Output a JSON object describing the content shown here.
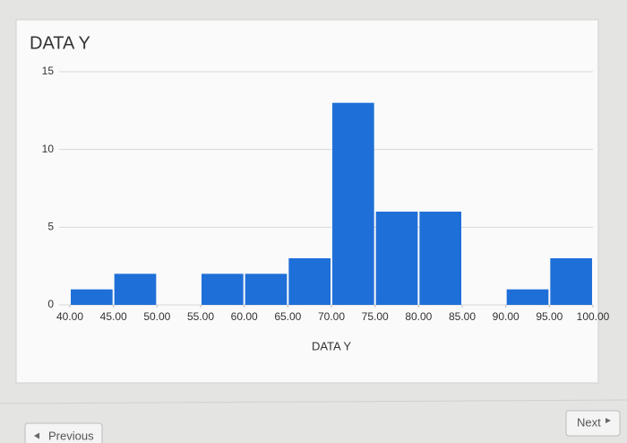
{
  "chart_data": {
    "type": "histogram",
    "title": "DATA Y",
    "x_label": "DATA Y",
    "bins": [
      40,
      45,
      50,
      55,
      60,
      65,
      70,
      75,
      80,
      85,
      90,
      95,
      100
    ],
    "values": [
      1,
      2,
      0,
      2,
      2,
      3,
      13,
      6,
      6,
      0,
      1,
      3
    ],
    "color": "#1f6fd8",
    "xlim": [
      40,
      100
    ],
    "xticks": [
      {
        "value": 40,
        "label": "40.00"
      },
      {
        "value": 45,
        "label": "45.00"
      },
      {
        "value": 50,
        "label": "50.00"
      },
      {
        "value": 55,
        "label": "55.00"
      },
      {
        "value": 60,
        "label": "60.00"
      },
      {
        "value": 65,
        "label": "65.00"
      },
      {
        "value": 70,
        "label": "70.00"
      },
      {
        "value": 75,
        "label": "75.00"
      },
      {
        "value": 80,
        "label": "80.00"
      },
      {
        "value": 85,
        "label": "85.00"
      },
      {
        "value": 90,
        "label": "90.00"
      },
      {
        "value": 95,
        "label": "95.00"
      },
      {
        "value": 100,
        "label": "100.00"
      }
    ],
    "ylim": [
      0,
      15
    ],
    "yticks": [
      0,
      5,
      10,
      15
    ],
    "grid": true
  },
  "navigation": {
    "previous": "Previous",
    "next": "Next"
  }
}
